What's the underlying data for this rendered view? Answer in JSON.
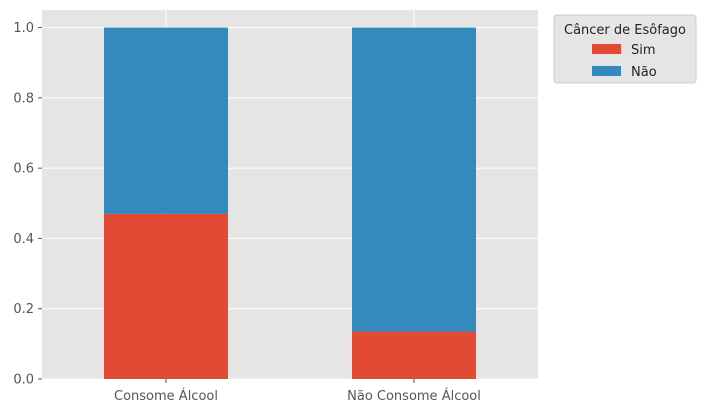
{
  "chart_data": {
    "type": "bar",
    "stacked": true,
    "categories": [
      "Consome Álcool",
      "Não Consome Álcool"
    ],
    "series": [
      {
        "name": "Sim",
        "values": [
          0.47,
          0.135
        ],
        "color": "#E24A33"
      },
      {
        "name": "Não",
        "values": [
          0.53,
          0.865
        ],
        "color": "#348ABD"
      }
    ],
    "ylim": [
      0,
      1.05
    ],
    "yticks": [
      "0.0",
      "0.2",
      "0.4",
      "0.6",
      "0.8",
      "1.0"
    ],
    "grid": true,
    "legend": {
      "title": "Câncer de Esôfago",
      "placement": "outside top-right"
    },
    "style": {
      "background": "#E5E5E5",
      "grid_color": "#FFFFFF"
    }
  }
}
